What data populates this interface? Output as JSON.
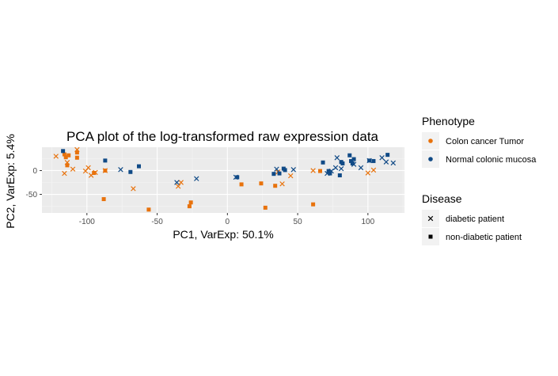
{
  "chart_data": {
    "type": "scatter",
    "title": "PCA plot of the log-transformed raw expression data",
    "xlabel": "PC1, VarExp: 50.1%",
    "ylabel": "PC2, VarExp: 5.4%",
    "xlim": [
      -132,
      126
    ],
    "ylim": [
      -89,
      49
    ],
    "x_ticks": [
      -100,
      -50,
      0,
      50,
      100
    ],
    "x_tick_labels": [
      "-100",
      "-50",
      "0",
      "50",
      "100"
    ],
    "y_ticks": [
      0,
      -50
    ],
    "y_tick_labels": [
      "0",
      "-50"
    ],
    "grid": true,
    "legends": [
      {
        "title": "Phenotype",
        "entries": [
          {
            "label": "Colon cancer Tumor",
            "color": "#E8720C",
            "marker": "dot"
          },
          {
            "label": "Normal colonic mucosa",
            "color": "#104A86",
            "marker": "dot"
          }
        ]
      },
      {
        "title": "Disease",
        "entries": [
          {
            "label": "diabetic patient",
            "marker": "x"
          },
          {
            "label": "non-diabetic patient",
            "marker": "square"
          }
        ]
      }
    ],
    "series": [
      {
        "phenotype": "Colon cancer Tumor",
        "disease": "diabetic patient",
        "color": "#E8720C",
        "marker": "x",
        "points": [
          [
            -122,
            30
          ],
          [
            -116,
            -6
          ],
          [
            -114,
            17
          ],
          [
            -110,
            3
          ],
          [
            -107,
            44
          ],
          [
            -101,
            -1
          ],
          [
            -99,
            6
          ],
          [
            -97,
            -10
          ],
          [
            -94,
            -4
          ],
          [
            -87,
            0
          ],
          [
            -67,
            -38
          ],
          [
            -35,
            -33
          ],
          [
            -33,
            -25
          ],
          [
            36,
            -3
          ],
          [
            39,
            -28
          ],
          [
            45,
            -11
          ],
          [
            61,
            0
          ],
          [
            100,
            -5
          ],
          [
            104,
            1
          ]
        ]
      },
      {
        "phenotype": "Colon cancer Tumor",
        "disease": "non-diabetic patient",
        "color": "#E8720C",
        "marker": "square",
        "points": [
          [
            -116,
            34
          ],
          [
            -115,
            28
          ],
          [
            -114,
            11
          ],
          [
            -113,
            32
          ],
          [
            -107,
            38
          ],
          [
            -107,
            27
          ],
          [
            -95,
            -5
          ],
          [
            -88,
            -60
          ],
          [
            -87,
            0
          ],
          [
            -56,
            -82
          ],
          [
            -27,
            -75
          ],
          [
            -26,
            -67
          ],
          [
            10,
            -29
          ],
          [
            24,
            -27
          ],
          [
            27,
            -78
          ],
          [
            34,
            -32
          ],
          [
            61,
            -71
          ],
          [
            66,
            -1
          ]
        ]
      },
      {
        "phenotype": "Normal colonic mucosa",
        "disease": "diabetic patient",
        "color": "#104A86",
        "marker": "x",
        "points": [
          [
            -76,
            2
          ],
          [
            -36,
            -25
          ],
          [
            -22,
            -17
          ],
          [
            6,
            -14
          ],
          [
            35,
            3
          ],
          [
            47,
            2
          ],
          [
            71,
            -6
          ],
          [
            74,
            -1
          ],
          [
            77,
            6
          ],
          [
            78,
            27
          ],
          [
            81,
            4
          ],
          [
            90,
            13
          ],
          [
            95,
            6
          ],
          [
            101,
            21
          ],
          [
            110,
            27
          ],
          [
            113,
            18
          ],
          [
            118,
            16
          ]
        ]
      },
      {
        "phenotype": "Normal colonic mucosa",
        "disease": "non-diabetic patient",
        "color": "#104A86",
        "marker": "square",
        "points": [
          [
            -117,
            41
          ],
          [
            -87,
            21
          ],
          [
            -69,
            -3
          ],
          [
            -63,
            9
          ],
          [
            7,
            -14
          ],
          [
            33,
            -7
          ],
          [
            37,
            -6
          ],
          [
            40,
            4
          ],
          [
            41,
            1
          ],
          [
            68,
            17
          ],
          [
            72,
            -1
          ],
          [
            73,
            -6
          ],
          [
            80,
            -10
          ],
          [
            81,
            18
          ],
          [
            82,
            15
          ],
          [
            87,
            32
          ],
          [
            88,
            20
          ],
          [
            89,
            15
          ],
          [
            90,
            24
          ],
          [
            101,
            21
          ],
          [
            104,
            20
          ],
          [
            114,
            33
          ]
        ]
      }
    ]
  }
}
